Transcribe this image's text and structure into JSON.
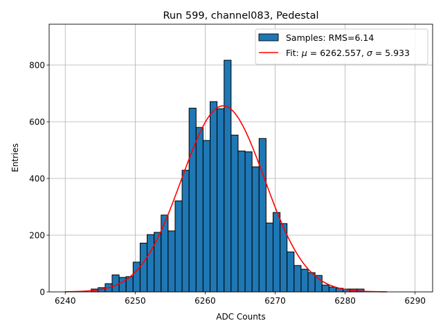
{
  "chart_data": {
    "type": "bar",
    "title": "Run 599, channel083, Pedestal",
    "xlabel": "ADC Counts",
    "ylabel": "Entries",
    "xlim": [
      6237.7,
      6292.5
    ],
    "ylim": [
      0,
      944
    ],
    "xticks": [
      6240,
      6250,
      6260,
      6270,
      6280,
      6290
    ],
    "yticks": [
      0,
      200,
      400,
      600,
      800
    ],
    "grid": true,
    "legend_placement": "top-right",
    "bin_width": 1,
    "bin_starts": [
      6243.7,
      6244.7,
      6245.7,
      6246.7,
      6247.7,
      6248.7,
      6249.7,
      6250.7,
      6251.7,
      6252.7,
      6253.7,
      6254.7,
      6255.7,
      6256.7,
      6257.7,
      6258.7,
      6259.7,
      6260.7,
      6261.7,
      6262.7,
      6263.7,
      6264.7,
      6265.7,
      6266.7,
      6267.7,
      6268.7,
      6269.7,
      6270.7,
      6271.7,
      6272.7,
      6273.7,
      6274.7,
      6275.7,
      6276.7,
      6277.7,
      6278.7,
      6279.7,
      6280.7,
      6281.7
    ],
    "series": [
      {
        "name": "Samples: RMS=6.14",
        "kind": "histogram",
        "color": "#1f77b4",
        "edge_color": "#000000",
        "values": [
          10,
          15,
          29,
          60,
          51,
          54,
          105,
          172,
          202,
          210,
          271,
          215,
          321,
          429,
          648,
          580,
          534,
          671,
          646,
          817,
          553,
          497,
          494,
          441,
          541,
          243,
          280,
          241,
          141,
          93,
          80,
          68,
          58,
          24,
          17,
          13,
          10,
          10,
          10
        ]
      },
      {
        "name": "Fit: μ = 6262.557, σ = 5.933",
        "label_prefix": "Fit: ",
        "mu_symbol": "μ",
        "mu_text": " = 6262.557, ",
        "sigma_symbol": "σ",
        "sigma_text": " = 5.933",
        "kind": "gaussian",
        "color": "#ff0000",
        "mu": 6262.557,
        "sigma": 5.933,
        "amplitude": 656,
        "x_range": [
          6240,
          6286
        ]
      }
    ]
  }
}
